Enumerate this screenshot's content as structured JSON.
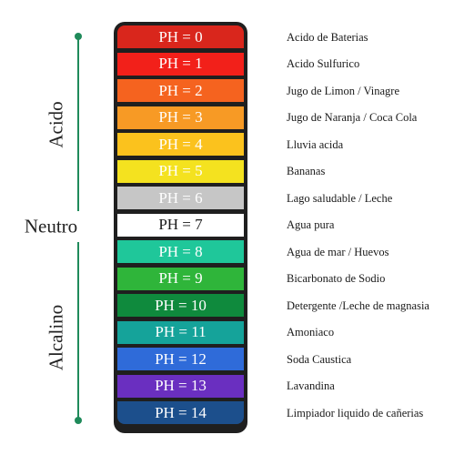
{
  "side_labels": {
    "acid": "Acido",
    "neutral": "Neutro",
    "alkaline": "Alcalino"
  },
  "scale_color": "#1f8a5a",
  "ph_levels": [
    {
      "label": "PH = 0",
      "value": 0,
      "color": "#d9261c",
      "text_color": "#ffffff",
      "example": "Acido de Baterias"
    },
    {
      "label": "PH = 1",
      "value": 1,
      "color": "#f2201a",
      "text_color": "#ffffff",
      "example": "Acido Sulfurico"
    },
    {
      "label": "PH = 2",
      "value": 2,
      "color": "#f5631f",
      "text_color": "#ffffff",
      "example": "Jugo de Limon / Vinagre"
    },
    {
      "label": "PH = 3",
      "value": 3,
      "color": "#f79a25",
      "text_color": "#ffffff",
      "example": "Jugo de Naranja / Coca Cola"
    },
    {
      "label": "PH = 4",
      "value": 4,
      "color": "#fbc21d",
      "text_color": "#ffffff",
      "example": "Lluvia acida"
    },
    {
      "label": "PH = 5",
      "value": 5,
      "color": "#f4e21f",
      "text_color": "#ffffff",
      "example": "Bananas"
    },
    {
      "label": "PH = 6",
      "value": 6,
      "color": "#c6c6c6",
      "text_color": "#ffffff",
      "example": "Lago saludable / Leche"
    },
    {
      "label": "PH = 7",
      "value": 7,
      "color": "#ffffff",
      "text_color": "#1a1a1a",
      "example": "Agua pura"
    },
    {
      "label": "PH = 8",
      "value": 8,
      "color": "#1fc79a",
      "text_color": "#ffffff",
      "example": "Agua de mar / Huevos"
    },
    {
      "label": "PH = 9",
      "value": 9,
      "color": "#2fb53a",
      "text_color": "#ffffff",
      "example": "Bicarbonato de Sodio"
    },
    {
      "label": "PH = 10",
      "value": 10,
      "color": "#0f8a3d",
      "text_color": "#ffffff",
      "example": "Detergente /Leche de magnasia"
    },
    {
      "label": "PH = 11",
      "value": 11,
      "color": "#15a39a",
      "text_color": "#ffffff",
      "example": "Amoniaco"
    },
    {
      "label": "PH = 12",
      "value": 12,
      "color": "#2f6bd9",
      "text_color": "#ffffff",
      "example": "Soda Caustica"
    },
    {
      "label": "PH = 13",
      "value": 13,
      "color": "#6a2fc0",
      "text_color": "#ffffff",
      "example": "Lavandina"
    },
    {
      "label": "PH = 14",
      "value": 14,
      "color": "#1c4f8c",
      "text_color": "#ffffff",
      "example": "Limpiador liquido de cañerias"
    }
  ]
}
